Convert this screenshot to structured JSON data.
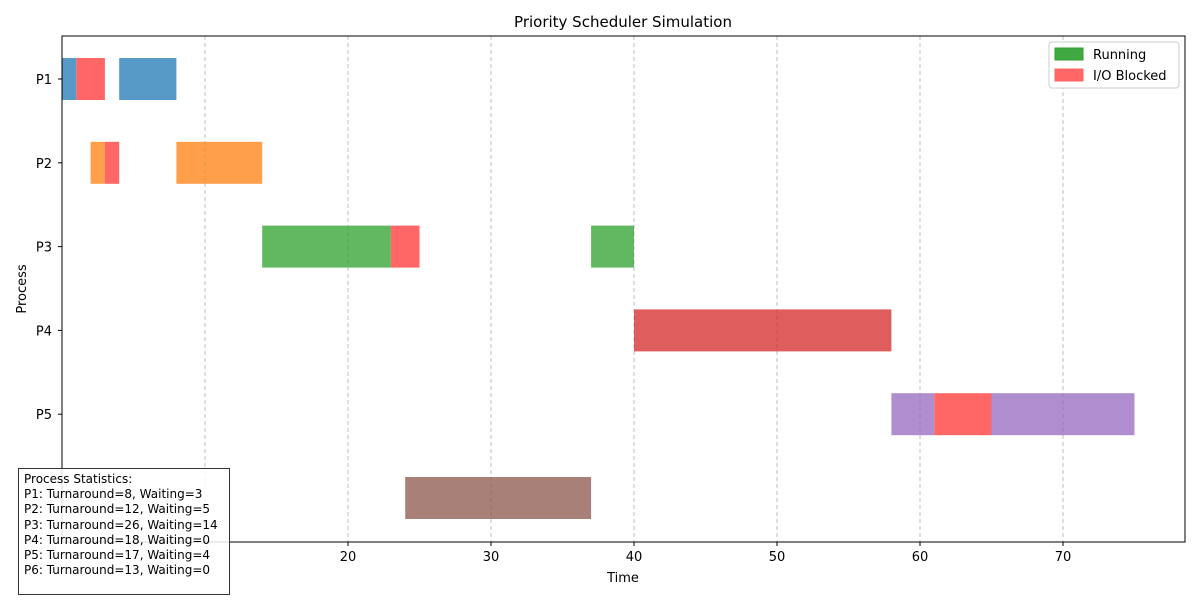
{
  "chart_data": {
    "type": "gantt",
    "title": "Priority Scheduler Simulation",
    "xlabel": "Time",
    "ylabel": "Process",
    "xlim": [
      0,
      78.5
    ],
    "xticks": [
      20,
      30,
      40,
      50,
      60,
      70
    ],
    "grid": "x-dashed",
    "processes": [
      "P1",
      "P2",
      "P3",
      "P4",
      "P5",
      "P6"
    ],
    "visible_y_labels": [
      "P1",
      "P2",
      "P3",
      "P4",
      "P5"
    ],
    "colors": {
      "P1": "#1f77b4",
      "P2": "#ff7f0e",
      "P3": "#2ca02c",
      "P4": "#d62728",
      "P5": "#9467bd",
      "P6": "#8c564b",
      "io_blocked": "#ff6666"
    },
    "segments": [
      {
        "process": "P1",
        "start": 0,
        "end": 1,
        "state": "running"
      },
      {
        "process": "P1",
        "start": 1,
        "end": 3,
        "state": "io"
      },
      {
        "process": "P1",
        "start": 4,
        "end": 8,
        "state": "running"
      },
      {
        "process": "P2",
        "start": 2,
        "end": 3,
        "state": "running"
      },
      {
        "process": "P2",
        "start": 3,
        "end": 4,
        "state": "io"
      },
      {
        "process": "P2",
        "start": 8,
        "end": 14,
        "state": "running"
      },
      {
        "process": "P3",
        "start": 14,
        "end": 23,
        "state": "running"
      },
      {
        "process": "P3",
        "start": 23,
        "end": 25,
        "state": "io"
      },
      {
        "process": "P3",
        "start": 37,
        "end": 40,
        "state": "running"
      },
      {
        "process": "P4",
        "start": 40,
        "end": 58,
        "state": "running"
      },
      {
        "process": "P5",
        "start": 58,
        "end": 61,
        "state": "running"
      },
      {
        "process": "P5",
        "start": 61,
        "end": 65,
        "state": "io"
      },
      {
        "process": "P5",
        "start": 65,
        "end": 75,
        "state": "running"
      },
      {
        "process": "P6",
        "start": 24,
        "end": 37,
        "state": "running"
      }
    ],
    "legend": {
      "position": "top-right",
      "entries": [
        {
          "label": "Running",
          "color": "#2ca02c"
        },
        {
          "label": "I/O Blocked",
          "color": "#ff6666"
        }
      ]
    },
    "stats": {
      "title": "Process Statistics:",
      "lines": [
        "P1: Turnaround=8, Waiting=3",
        "P2: Turnaround=12, Waiting=5",
        "P3: Turnaround=26, Waiting=14",
        "P4: Turnaround=18, Waiting=0",
        "P5: Turnaround=17, Waiting=4",
        "P6: Turnaround=13, Waiting=0"
      ]
    }
  }
}
